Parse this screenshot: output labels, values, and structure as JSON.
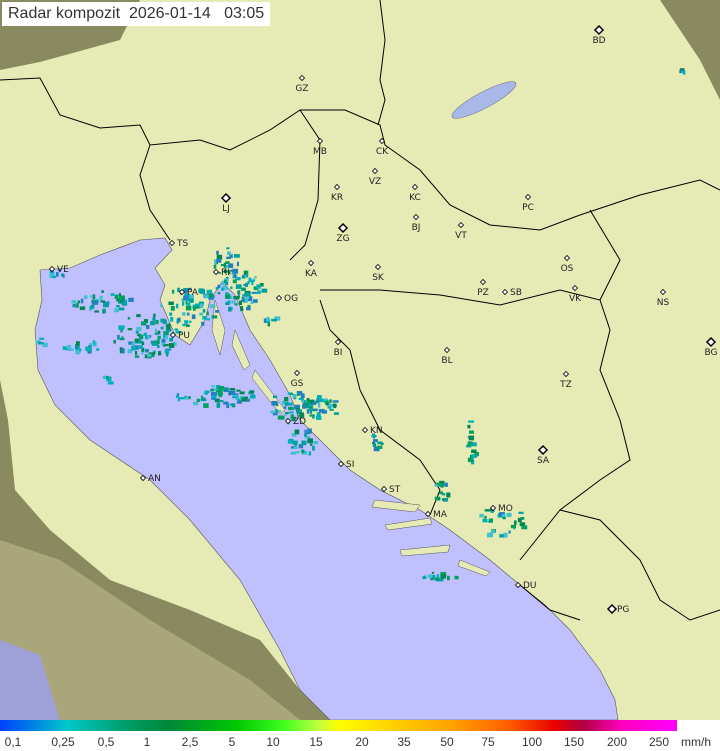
{
  "title": "Radar kompozit  2026-01-14   03:05",
  "colors": {
    "sea": "#c0c0ff",
    "land_in_range": "#e8ecb4",
    "land_out_of_range": "#8a8a60",
    "border": "#000000",
    "precip_light": "#00a0a0",
    "precip_medium": "#008040"
  },
  "cities": [
    {
      "code": "BD",
      "capital": true
    },
    {
      "code": "GZ"
    },
    {
      "code": "MB"
    },
    {
      "code": "CK"
    },
    {
      "code": "VZ"
    },
    {
      "code": "KR"
    },
    {
      "code": "KC"
    },
    {
      "code": "PC"
    },
    {
      "code": "LJ",
      "capital": true
    },
    {
      "code": "BJ"
    },
    {
      "code": "VT"
    },
    {
      "code": "ZG",
      "capital": true
    },
    {
      "code": "TS"
    },
    {
      "code": "VE"
    },
    {
      "code": "KA"
    },
    {
      "code": "SK"
    },
    {
      "code": "OS"
    },
    {
      "code": "PZ"
    },
    {
      "code": "SB"
    },
    {
      "code": "VK"
    },
    {
      "code": "NS"
    },
    {
      "code": "PA"
    },
    {
      "code": "RI"
    },
    {
      "code": "OG"
    },
    {
      "code": "PU"
    },
    {
      "code": "BI"
    },
    {
      "code": "BL"
    },
    {
      "code": "BG",
      "capital": true
    },
    {
      "code": "GS"
    },
    {
      "code": "TZ"
    },
    {
      "code": "ZD"
    },
    {
      "code": "KN"
    },
    {
      "code": "SA",
      "capital": true
    },
    {
      "code": "SI"
    },
    {
      "code": "AN"
    },
    {
      "code": "ST"
    },
    {
      "code": "MO"
    },
    {
      "code": "MA"
    },
    {
      "code": "DU"
    },
    {
      "code": "PG",
      "capital": true
    }
  ],
  "legend": {
    "labels": [
      "0,1",
      "0,25",
      "0,5",
      "1",
      "2,5",
      "5",
      "10",
      "15",
      "20",
      "35",
      "50",
      "75",
      "100",
      "150",
      "200",
      "250"
    ],
    "unit": "mm/h"
  }
}
